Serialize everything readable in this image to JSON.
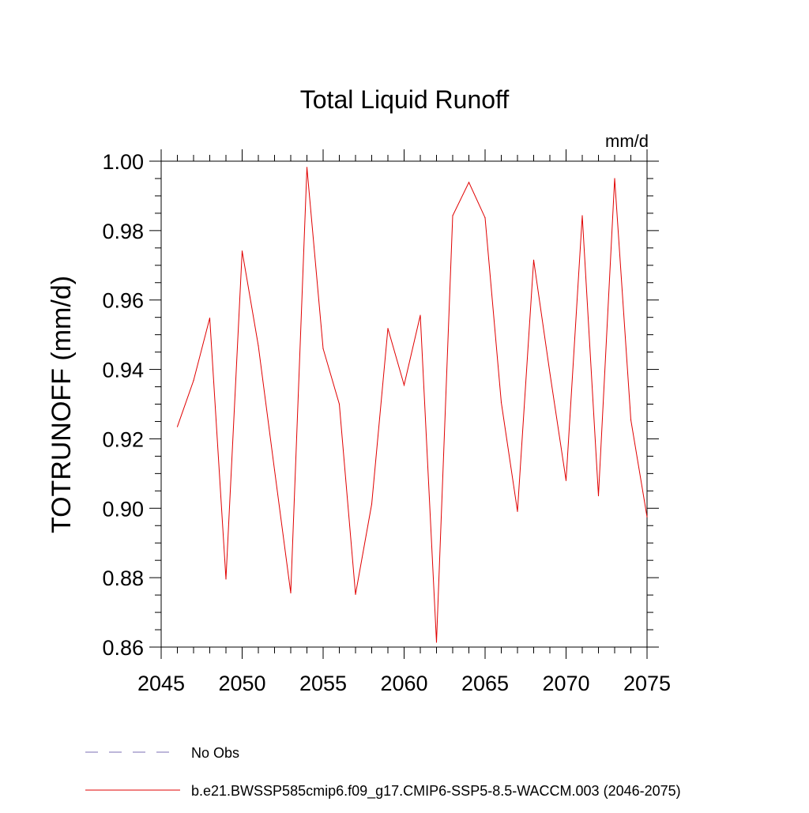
{
  "chart_data": {
    "type": "line",
    "title": "Total Liquid Runoff",
    "units": "mm/d",
    "ylabel": "TOTRUNOFF  (mm/d)",
    "xlabel": "",
    "xlim": [
      2045,
      2075
    ],
    "ylim": [
      0.86,
      1.0
    ],
    "xticks": [
      2045,
      2050,
      2055,
      2060,
      2065,
      2070,
      2075
    ],
    "yticks": [
      0.86,
      0.88,
      0.9,
      0.92,
      0.94,
      0.96,
      0.98,
      1.0
    ],
    "ytick_labels": [
      "0.86",
      "0.88",
      "0.90",
      "0.92",
      "0.94",
      "0.96",
      "0.98",
      "1.00"
    ],
    "grid": false,
    "legend_position": "bottom",
    "series": [
      {
        "name": "No Obs",
        "color": "#7b6fb5",
        "style": "dashed",
        "x": [],
        "values": []
      },
      {
        "name": "b.e21.BWSSP585cmip6.f09_g17.CMIP6-SSP5-8.5-WACCM.003 (2046-2075)",
        "color": "#e00000",
        "style": "solid",
        "x": [
          2046,
          2047,
          2048,
          2049,
          2050,
          2051,
          2052,
          2053,
          2054,
          2055,
          2056,
          2057,
          2058,
          2059,
          2060,
          2061,
          2062,
          2063,
          2064,
          2065,
          2066,
          2067,
          2068,
          2069,
          2070,
          2071,
          2072,
          2073,
          2074,
          2075
        ],
        "values": [
          0.9235,
          0.9368,
          0.9548,
          0.8796,
          0.9741,
          0.9468,
          0.911,
          0.8756,
          0.9982,
          0.946,
          0.93,
          0.8752,
          0.9012,
          0.9518,
          0.9355,
          0.9556,
          0.8614,
          0.9843,
          0.9939,
          0.9837,
          0.9305,
          0.8991,
          0.9715,
          0.939,
          0.908,
          0.9843,
          0.9036,
          0.995,
          0.9255,
          0.8975
        ]
      }
    ]
  }
}
